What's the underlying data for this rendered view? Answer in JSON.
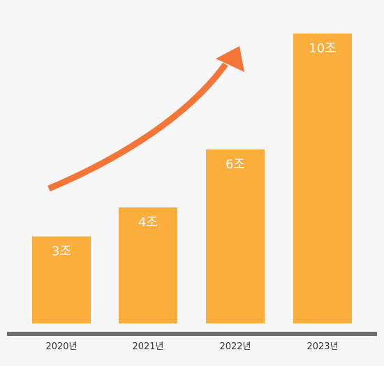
{
  "colors": {
    "background": "#f7f7f7",
    "bar": "#fbae3c",
    "arrow": "#f47536",
    "baseline": "#6e6e6e",
    "bar_label": "#ffffff",
    "tick_label": "#333333"
  },
  "chart_data": {
    "type": "bar",
    "categories": [
      "2020년",
      "2021년",
      "2022년",
      "2023년"
    ],
    "values": [
      3,
      4,
      6,
      10
    ],
    "value_labels": [
      "3조",
      "4조",
      "6조",
      "10조"
    ],
    "ylim": [
      0,
      10
    ],
    "grid": false,
    "legend": "none",
    "annotations": [
      {
        "type": "arrow",
        "direction": "up-right",
        "meaning": "increasing trend"
      }
    ]
  }
}
